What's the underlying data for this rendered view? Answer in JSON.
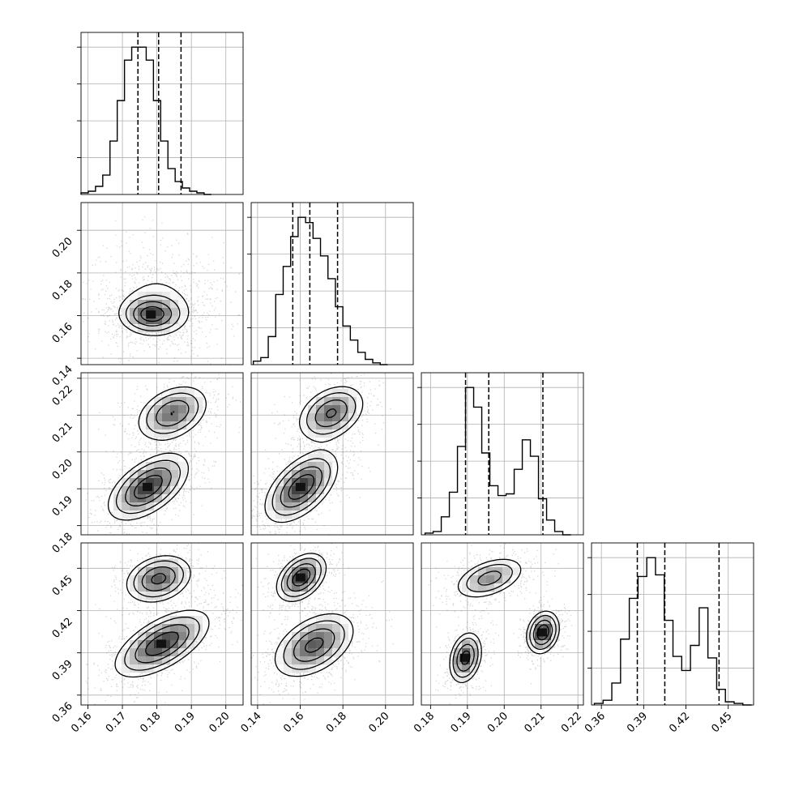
{
  "chart_data": {
    "type": "corner",
    "grid": true,
    "parameters": [
      {
        "range": [
          0.158,
          0.205
        ],
        "ticks": [
          "0.16",
          "0.17",
          "0.18",
          "0.19",
          "0.20"
        ],
        "quantiles": [
          0.1745,
          0.1805,
          0.187
        ],
        "bin_start": 0.158,
        "bin_width": 0.0021,
        "hist": [
          1,
          2,
          5,
          12,
          33,
          58,
          83,
          91,
          91,
          83,
          58,
          33,
          16,
          8,
          4,
          2,
          1,
          0
        ]
      },
      {
        "range": [
          0.137,
          0.213
        ],
        "ticks": [
          "0.14",
          "0.16",
          "0.18",
          "0.20"
        ],
        "quantiles": [
          0.1565,
          0.1645,
          0.1775
        ],
        "bin_start": 0.138,
        "bin_width": 0.0035,
        "hist": [
          2,
          4,
          16,
          40,
          56,
          73,
          84,
          81,
          72,
          62,
          49,
          33,
          22,
          14,
          7,
          3,
          1,
          0
        ]
      },
      {
        "range": [
          0.1775,
          0.2215
        ],
        "ticks": [
          "0.18",
          "0.19",
          "0.20",
          "0.21",
          "0.22"
        ],
        "quantiles": [
          0.1895,
          0.1958,
          0.2105
        ],
        "bin_start": 0.1785,
        "bin_width": 0.0022,
        "hist": [
          1,
          2,
          11,
          26,
          54,
          90,
          78,
          50,
          30,
          24,
          25,
          40,
          58,
          48,
          22,
          9,
          2,
          0
        ]
      },
      {
        "range": [
          0.353,
          0.468
        ],
        "ticks": [
          "0.36",
          "0.39",
          "0.42",
          "0.45"
        ],
        "quantiles": [
          0.3855,
          0.405,
          0.4435
        ],
        "bin_start": 0.355,
        "bin_width": 0.0062,
        "hist": [
          1,
          3,
          14,
          42,
          68,
          82,
          94,
          83,
          54,
          31,
          22,
          38,
          62,
          30,
          10,
          2,
          1,
          0
        ]
      }
    ],
    "pairs": [
      {
        "row": 1,
        "col": 0,
        "modes": [
          {
            "cx": 0.1805,
            "cy": 0.1665,
            "sx": 0.0075,
            "sy": 0.0108,
            "rho": -0.1,
            "w": 0.45,
            "peak": false
          },
          {
            "cx": 0.1785,
            "cy": 0.1605,
            "sx": 0.0045,
            "sy": 0.0045,
            "rho": 0.0,
            "w": 0.55,
            "peak": true
          }
        ]
      },
      {
        "row": 2,
        "col": 0,
        "modes": [
          {
            "cx": 0.1775,
            "cy": 0.1905,
            "sx": 0.0058,
            "sy": 0.0045,
            "rho": 0.55,
            "w": 0.6,
            "peak": true
          },
          {
            "cx": 0.1845,
            "cy": 0.2105,
            "sx": 0.0052,
            "sy": 0.0038,
            "rho": 0.35,
            "w": 0.4,
            "peak": false
          }
        ]
      },
      {
        "row": 2,
        "col": 1,
        "modes": [
          {
            "cx": 0.1605,
            "cy": 0.1905,
            "sx": 0.0085,
            "sy": 0.0048,
            "rho": 0.55,
            "w": 0.6,
            "peak": true
          },
          {
            "cx": 0.1745,
            "cy": 0.2105,
            "sx": 0.0078,
            "sy": 0.0038,
            "rho": 0.35,
            "w": 0.4,
            "peak": false
          }
        ]
      },
      {
        "row": 3,
        "col": 0,
        "modes": [
          {
            "cx": 0.1805,
            "cy": 0.4425,
            "sx": 0.0048,
            "sy": 0.0085,
            "rho": 0.25,
            "w": 0.35,
            "peak": false
          },
          {
            "cx": 0.1815,
            "cy": 0.3965,
            "sx": 0.0068,
            "sy": 0.0118,
            "rho": 0.62,
            "w": 0.65,
            "peak": true
          }
        ]
      },
      {
        "row": 3,
        "col": 1,
        "modes": [
          {
            "cx": 0.1605,
            "cy": 0.4435,
            "sx": 0.0058,
            "sy": 0.0085,
            "rho": 0.4,
            "w": 0.35,
            "peak": true
          },
          {
            "cx": 0.1665,
            "cy": 0.3955,
            "sx": 0.0095,
            "sy": 0.0115,
            "rho": 0.45,
            "w": 0.65,
            "peak": false
          }
        ]
      },
      {
        "row": 3,
        "col": 2,
        "modes": [
          {
            "cx": 0.196,
            "cy": 0.443,
            "sx": 0.0048,
            "sy": 0.0075,
            "rho": 0.45,
            "w": 0.38,
            "peak": false
          },
          {
            "cx": 0.1895,
            "cy": 0.3865,
            "sx": 0.0022,
            "sy": 0.009,
            "rho": 0.25,
            "w": 0.32,
            "peak": true
          },
          {
            "cx": 0.2105,
            "cy": 0.4045,
            "sx": 0.0022,
            "sy": 0.0075,
            "rho": 0.2,
            "w": 0.3,
            "peak": true
          }
        ]
      }
    ]
  }
}
